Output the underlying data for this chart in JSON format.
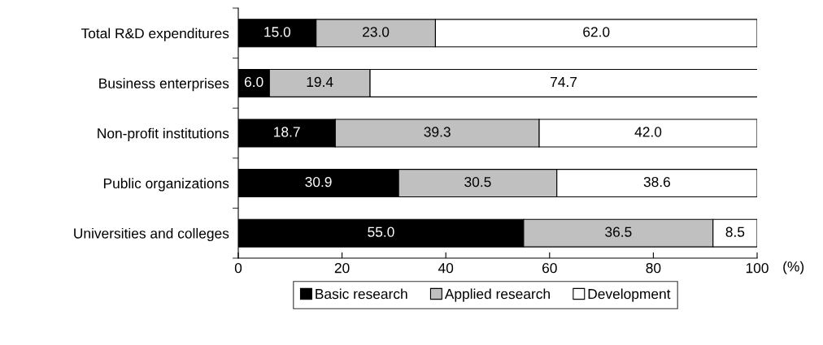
{
  "chart_data": {
    "type": "bar",
    "orientation": "horizontal",
    "stacked": true,
    "categories": [
      "Total R&D expenditures",
      "Business enterprises",
      "Non-profit institutions",
      "Public organizations",
      "Universities and colleges"
    ],
    "series": [
      {
        "name": "Basic research",
        "color": "#000000",
        "values": [
          15.0,
          6.0,
          18.7,
          30.9,
          55.0
        ],
        "value_labels": [
          "15.0",
          "6.0",
          "18.7",
          "30.9",
          "55.0"
        ]
      },
      {
        "name": "Applied research",
        "color": "#c0c0c0",
        "values": [
          23.0,
          19.4,
          39.3,
          30.5,
          36.5
        ],
        "value_labels": [
          "23.0",
          "19.4",
          "39.3",
          "30.5",
          "36.5"
        ]
      },
      {
        "name": "Development",
        "color": "#ffffff",
        "values": [
          62.0,
          74.7,
          42.0,
          38.6,
          8.5
        ],
        "value_labels": [
          "62.0",
          "74.7",
          "42.0",
          "38.6",
          "8.5"
        ]
      }
    ],
    "xlim": [
      0,
      100
    ],
    "xticks": [
      0,
      20,
      40,
      60,
      80,
      100
    ],
    "xlabel": "(%)",
    "grid": false,
    "legend": "bottom"
  }
}
